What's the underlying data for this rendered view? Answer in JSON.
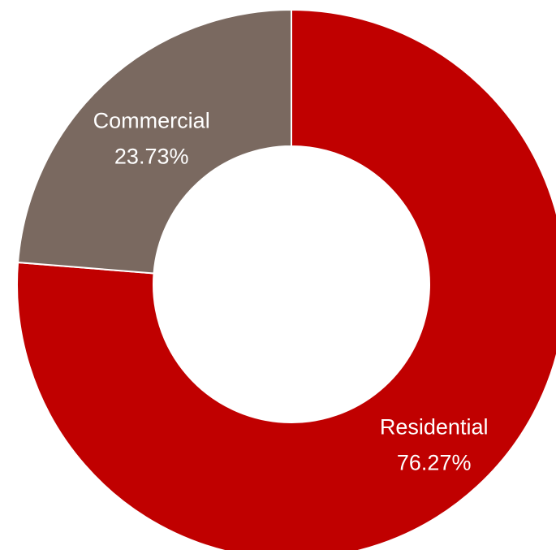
{
  "chart_data": {
    "type": "pie",
    "title": "",
    "donut": true,
    "categories": [
      "Residential",
      "Commercial"
    ],
    "values": [
      76.27,
      23.73
    ],
    "value_labels": [
      "76.27%",
      "23.73%"
    ],
    "colors": [
      "#c00000",
      "#7a6960"
    ],
    "start_angle_deg": 0,
    "direction": "clockwise",
    "legend": "none"
  }
}
